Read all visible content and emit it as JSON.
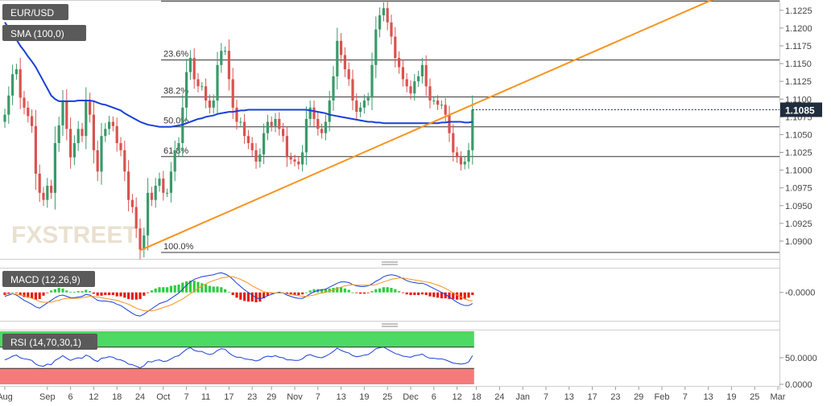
{
  "colors": {
    "up": "#3a9a6a",
    "down": "#d9534f",
    "sma": "#1a3fd8",
    "trend": "#f7931e",
    "price_tag": "#1f2d3d",
    "macd_line": "#1a3fd8",
    "signal_line": "#f7931e",
    "hist_pos": "#2ecc40",
    "hist_neg": "#e8190f",
    "rsi_line": "#1a3fd8",
    "rsi_over": "#4cd964",
    "rsi_under": "#f47b7b",
    "label_bg": "#5a5a5a"
  },
  "chart_data": [
    {
      "type": "candlestick",
      "symbol": "EUR/USD",
      "indicator": "SMA (100,0)",
      "ylim": [
        1.0875,
        1.1235
      ],
      "y_ticks": [
        "1.1225",
        "1.1200",
        "1.1175",
        "1.1150",
        "1.1125",
        "1.1100",
        "1.1075",
        "1.1050",
        "1.1025",
        "1.1000",
        "1.0975",
        "1.0950",
        "1.0925",
        "1.0900"
      ],
      "last_price": "1.1085",
      "fib_levels": [
        {
          "label": "23.6%",
          "value": 1.1155
        },
        {
          "label": "38.2%",
          "value": 1.1103
        },
        {
          "label": "50.0%",
          "value": 1.1061
        },
        {
          "label": "61.8%",
          "value": 1.1019
        },
        {
          "label": "100.0%",
          "value": 1.0884
        }
      ],
      "top_level": 1.1238,
      "closes": [
        1.1078,
        1.1105,
        1.1135,
        1.1142,
        1.1102,
        1.1088,
        1.1076,
        1.1062,
        1.0995,
        1.0968,
        1.0958,
        1.0978,
        1.0968,
        1.1038,
        1.1063,
        1.1098,
        1.1058,
        1.1018,
        1.1038,
        1.1058,
        1.1048,
        1.1098,
        1.1078,
        1.1028,
        1.0998,
        1.1048,
        1.1058,
        1.1068,
        1.1062,
        1.1038,
        1.1028,
        1.0998,
        1.0958,
        1.0948,
        1.0918,
        1.0888,
        1.0908,
        1.0968,
        1.0958,
        1.0978,
        1.0988,
        1.0968,
        1.0968,
        1.0998,
        1.1028,
        1.1038,
        1.1088,
        1.1138,
        1.1158,
        1.1128,
        1.1118,
        1.1118,
        1.1098,
        1.1088,
        1.1098,
        1.1148,
        1.1168,
        1.1168,
        1.1128,
        1.1088,
        1.1068,
        1.1068,
        1.1048,
        1.1038,
        1.1028,
        1.1012,
        1.1022,
        1.1052,
        1.1068,
        1.1062,
        1.1072,
        1.1058,
        1.1048,
        1.1018,
        1.1015,
        1.1012,
        1.1008,
        1.1025,
        1.1072,
        1.1088,
        1.1072,
        1.1058,
        1.1052,
        1.1068,
        1.1098,
        1.1132,
        1.1182,
        1.1162,
        1.1142,
        1.1128,
        1.1098,
        1.1082,
        1.1088,
        1.1098,
        1.1102,
        1.1148,
        1.1198,
        1.1218,
        1.1228,
        1.1208,
        1.1188,
        1.1158,
        1.1145,
        1.1128,
        1.1118,
        1.1108,
        1.1125,
        1.1132,
        1.1148,
        1.1118,
        1.1098,
        1.1098,
        1.1092,
        1.1092,
        1.1078,
        1.1052,
        1.1025,
        1.1018,
        1.1008,
        1.1012,
        1.1028,
        1.1085
      ],
      "sma": [
        1.1208,
        1.12,
        1.1192,
        1.1184,
        1.1175,
        1.1168,
        1.116,
        1.1153,
        1.1145,
        1.1135,
        1.1125,
        1.1115,
        1.1105,
        1.11,
        1.1097,
        1.1097,
        1.1097,
        1.1097,
        1.1097,
        1.1098,
        1.1098,
        1.1098,
        1.1098,
        1.1097,
        1.1095,
        1.1093,
        1.1092,
        1.109,
        1.1088,
        1.1086,
        1.1084,
        1.108,
        1.1077,
        1.1074,
        1.1071,
        1.1068,
        1.1066,
        1.1064,
        1.1063,
        1.1062,
        1.1061,
        1.1061,
        1.1061,
        1.1061,
        1.1062,
        1.1063,
        1.1064,
        1.1066,
        1.1068,
        1.107,
        1.1072,
        1.1073,
        1.1075,
        1.1076,
        1.1077,
        1.1079,
        1.108,
        1.1081,
        1.1082,
        1.1082,
        1.1083,
        1.1084,
        1.1084,
        1.1085,
        1.1085,
        1.1085,
        1.1085,
        1.1085,
        1.1085,
        1.1085,
        1.1085,
        1.1085,
        1.1085,
        1.1085,
        1.1085,
        1.1085,
        1.1085,
        1.1085,
        1.1085,
        1.1084,
        1.1083,
        1.1082,
        1.1081,
        1.108,
        1.1078,
        1.1077,
        1.1076,
        1.1075,
        1.1074,
        1.1073,
        1.1072,
        1.1071,
        1.107,
        1.1069,
        1.1068,
        1.1068,
        1.1067,
        1.1067,
        1.1066,
        1.1066,
        1.1066,
        1.1066,
        1.1066,
        1.1066,
        1.1066,
        1.1066,
        1.1066,
        1.1066,
        1.1066,
        1.1066,
        1.1066,
        1.1066,
        1.1066,
        1.1067,
        1.1067,
        1.1068,
        1.1068,
        1.1068,
        1.1068,
        1.1067,
        1.1067,
        1.1068
      ],
      "trendline": {
        "start_index": 35,
        "start_value": 1.0887,
        "end_index": 121,
        "end_value": 1.1092
      }
    },
    {
      "type": "macd",
      "title": "MACD (12,26,9)",
      "y_tick": "-0.0000",
      "macd": [
        -0.0006,
        -0.0004,
        -0.0002,
        -0.0004,
        -0.0008,
        -0.0012,
        -0.0015,
        -0.0018,
        -0.0022,
        -0.0024,
        -0.002,
        -0.0016,
        -0.0012,
        -0.0008,
        -0.0005,
        -0.0004,
        -0.0006,
        -0.0008,
        -0.0008,
        -0.0007,
        -0.0006,
        -0.0003,
        -0.0004,
        -0.0008,
        -0.0012,
        -0.0013,
        -0.0013,
        -0.0014,
        -0.0015,
        -0.0018,
        -0.002,
        -0.0024,
        -0.0028,
        -0.0032,
        -0.0035,
        -0.0036,
        -0.0033,
        -0.0029,
        -0.0025,
        -0.0021,
        -0.0017,
        -0.0015,
        -0.0013,
        -0.0009,
        -0.0005,
        -0.0001,
        0.0005,
        0.0011,
        0.0016,
        0.002,
        0.0022,
        0.0024,
        0.0025,
        0.0026,
        0.0027,
        0.0029,
        0.003,
        0.0028,
        0.0025,
        0.002,
        0.0014,
        0.0009,
        0.0004,
        0.0,
        -0.0004,
        -0.0008,
        -0.001,
        -0.0008,
        -0.0005,
        -0.0003,
        -0.0001,
        0.0,
        -0.0001,
        -0.0004,
        -0.0006,
        -0.0008,
        -0.0009,
        -0.0009,
        -0.0006,
        -0.0002,
        0.0001,
        0.0003,
        0.0004,
        0.0005,
        0.0008,
        0.0011,
        0.0014,
        0.0016,
        0.0016,
        0.0015,
        0.0012,
        0.001,
        0.0009,
        0.0009,
        0.001,
        0.0013,
        0.0017,
        0.002,
        0.0024,
        0.0026,
        0.0027,
        0.0026,
        0.0024,
        0.0021,
        0.0018,
        0.0016,
        0.0015,
        0.0014,
        0.0014,
        0.0012,
        0.0009,
        0.0006,
        0.0003,
        0.0,
        -0.0003,
        -0.0007,
        -0.0011,
        -0.0015,
        -0.0018,
        -0.002,
        -0.002,
        -0.0017
      ],
      "signal": [
        -0.0002,
        -0.0002,
        -0.0002,
        -0.0003,
        -0.0004,
        -0.0005,
        -0.0007,
        -0.0009,
        -0.0011,
        -0.0014,
        -0.0015,
        -0.0015,
        -0.0015,
        -0.0013,
        -0.0012,
        -0.001,
        -0.0009,
        -0.0009,
        -0.0009,
        -0.0009,
        -0.0008,
        -0.0007,
        -0.0006,
        -0.0006,
        -0.0007,
        -0.0008,
        -0.0009,
        -0.001,
        -0.0011,
        -0.0012,
        -0.0014,
        -0.0016,
        -0.0018,
        -0.0021,
        -0.0024,
        -0.0026,
        -0.0028,
        -0.0028,
        -0.0028,
        -0.0027,
        -0.0025,
        -0.0023,
        -0.0021,
        -0.0019,
        -0.0016,
        -0.0013,
        -0.001,
        -0.0006,
        -0.0002,
        0.0002,
        0.0006,
        0.001,
        0.0013,
        0.0016,
        0.0018,
        0.002,
        0.0022,
        0.0023,
        0.0024,
        0.0024,
        0.0022,
        0.002,
        0.0017,
        0.0014,
        0.001,
        0.0007,
        0.0004,
        0.0001,
        0.0,
        -0.0001,
        -0.0001,
        -0.0001,
        -0.0001,
        -0.0002,
        -0.0003,
        -0.0004,
        -0.0005,
        -0.0006,
        -0.0006,
        -0.0005,
        -0.0004,
        -0.0002,
        -0.0001,
        0.0,
        0.0002,
        0.0004,
        0.0006,
        0.0008,
        0.001,
        0.0011,
        0.0012,
        0.0011,
        0.0011,
        0.0011,
        0.0011,
        0.0011,
        0.0012,
        0.0014,
        0.0016,
        0.0018,
        0.002,
        0.0021,
        0.0022,
        0.0022,
        0.0021,
        0.002,
        0.0019,
        0.0018,
        0.0017,
        0.0016,
        0.0015,
        0.0013,
        0.0011,
        0.0009,
        0.0006,
        0.0003,
        -0.0001,
        -0.0004,
        -0.0007,
        -0.001,
        -0.0012,
        -0.0013
      ]
    },
    {
      "type": "rsi",
      "title": "RSI (14,70,30,1)",
      "y_ticks": [
        "50.0000",
        "0.0000"
      ],
      "overbought": 70,
      "oversold": 30,
      "values": [
        46,
        49,
        53,
        55,
        50,
        48,
        47,
        45,
        38,
        35,
        34,
        38,
        37,
        45,
        49,
        54,
        49,
        45,
        48,
        50,
        49,
        55,
        52,
        46,
        43,
        49,
        50,
        52,
        51,
        47,
        46,
        43,
        38,
        37,
        34,
        31,
        35,
        43,
        42,
        45,
        46,
        43,
        44,
        48,
        52,
        54,
        60,
        66,
        69,
        64,
        62,
        62,
        58,
        56,
        58,
        64,
        67,
        66,
        59,
        54,
        51,
        51,
        48,
        47,
        46,
        44,
        46,
        51,
        53,
        52,
        54,
        51,
        50,
        46,
        46,
        45,
        45,
        48,
        54,
        56,
        53,
        51,
        50,
        53,
        57,
        62,
        68,
        64,
        61,
        59,
        54,
        52,
        53,
        55,
        56,
        61,
        67,
        69,
        70,
        66,
        62,
        58,
        56,
        53,
        52,
        51,
        54,
        55,
        57,
        52,
        49,
        49,
        48,
        48,
        46,
        43,
        40,
        39,
        38,
        39,
        42,
        54
      ]
    }
  ],
  "x_axis_labels": [
    {
      "label": "Aug",
      "index": 0
    },
    {
      "label": "Sep",
      "index": 11
    },
    {
      "label": "6",
      "index": 17
    },
    {
      "label": "12",
      "index": 23
    },
    {
      "label": "18",
      "index": 29
    },
    {
      "label": "24",
      "index": 35
    },
    {
      "label": "Oct",
      "index": 41
    },
    {
      "label": "7",
      "index": 47
    },
    {
      "label": "11",
      "index": 52
    },
    {
      "label": "17",
      "index": 58
    },
    {
      "label": "23",
      "index": 64
    },
    {
      "label": "29",
      "index": 69
    },
    {
      "label": "Nov",
      "index": 75
    },
    {
      "label": "7",
      "index": 81
    },
    {
      "label": "13",
      "index": 87
    },
    {
      "label": "19",
      "index": 93
    },
    {
      "label": "25",
      "index": 99
    },
    {
      "label": "Dec",
      "index": 105
    },
    {
      "label": "6",
      "index": 111
    },
    {
      "label": "12",
      "index": 117
    },
    {
      "label": "18",
      "index": 122
    },
    {
      "label": "24",
      "index": 128
    },
    {
      "label": "Jan",
      "index": 134
    },
    {
      "label": "7",
      "index": 140
    },
    {
      "label": "13",
      "index": 146
    },
    {
      "label": "17",
      "index": 152
    },
    {
      "label": "23",
      "index": 158
    },
    {
      "label": "29",
      "index": 164
    },
    {
      "label": "Feb",
      "index": 170
    },
    {
      "label": "7",
      "index": 176
    },
    {
      "label": "13",
      "index": 182
    },
    {
      "label": "19",
      "index": 188
    },
    {
      "label": "25",
      "index": 194
    },
    {
      "label": "Mar",
      "index": 200
    }
  ],
  "watermark": "FXSTREET"
}
